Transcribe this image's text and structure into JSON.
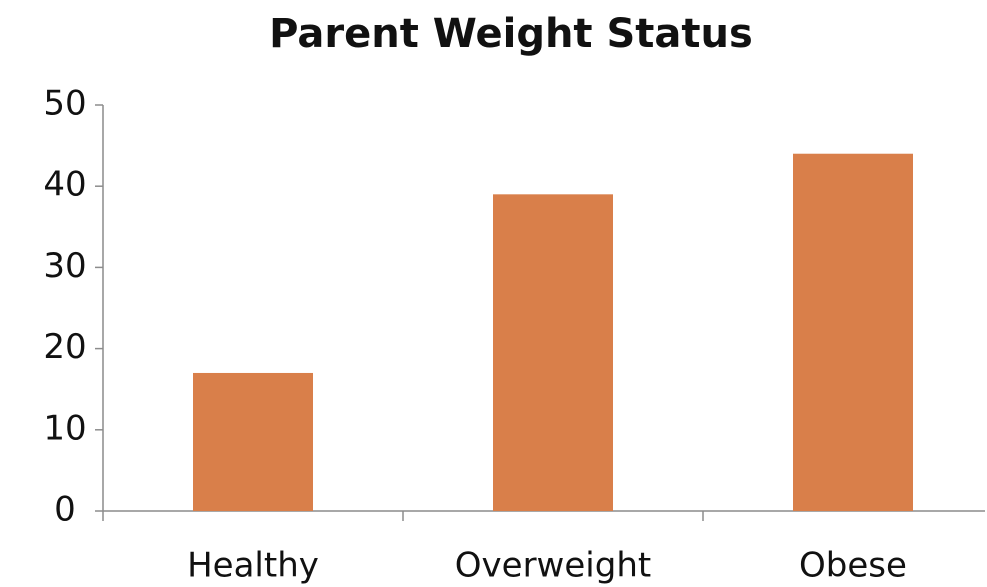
{
  "chart_data": {
    "type": "bar",
    "title": "Parent Weight Status",
    "categories": [
      "Healthy",
      "Overweight",
      "Obese"
    ],
    "values": [
      17,
      39,
      44
    ],
    "color": "#d97f4a",
    "ylim": [
      0,
      50
    ],
    "yticks": [
      0,
      10,
      20,
      30,
      40,
      50
    ],
    "grid": false
  }
}
